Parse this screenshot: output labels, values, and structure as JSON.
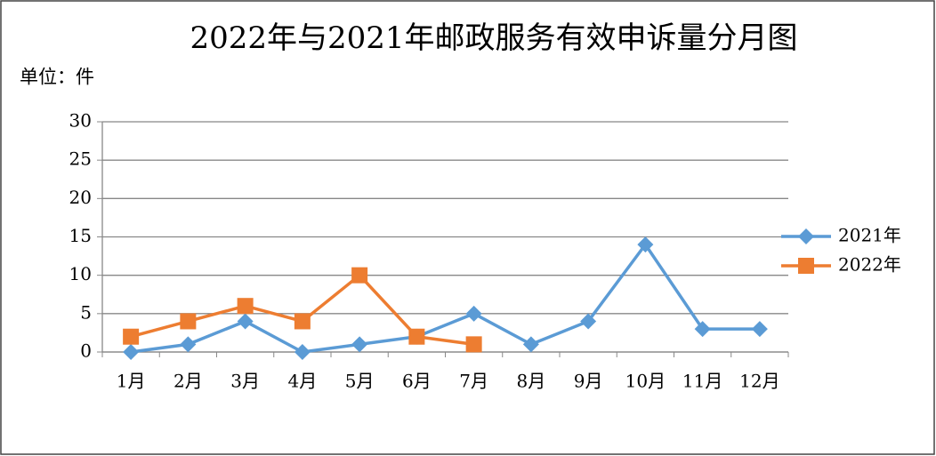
{
  "chart_data": {
    "type": "line",
    "title": "2022年与2021年邮政服务有效申诉量分月图",
    "unit_label": "单位：件",
    "categories": [
      "1月",
      "2月",
      "3月",
      "4月",
      "5月",
      "6月",
      "7月",
      "8月",
      "9月",
      "10月",
      "11月",
      "12月"
    ],
    "series": [
      {
        "name": "2021年",
        "color": "#5b9bd5",
        "marker": "diamond",
        "values": [
          0,
          1,
          4,
          0,
          1,
          2,
          5,
          1,
          4,
          14,
          3,
          3
        ]
      },
      {
        "name": "2022年",
        "color": "#ed7d31",
        "marker": "square",
        "values": [
          2,
          4,
          6,
          4,
          10,
          2,
          1,
          null,
          null,
          null,
          null,
          null
        ]
      }
    ],
    "ylim": [
      0,
      30
    ],
    "yticks": [
      0,
      5,
      10,
      15,
      20,
      25,
      30
    ],
    "grid": true,
    "legend": "right"
  }
}
